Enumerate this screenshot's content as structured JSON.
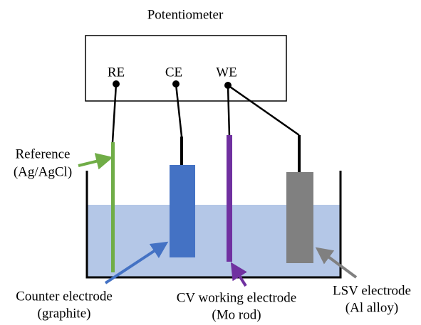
{
  "title": "Potentiometer",
  "terminals": [
    "RE",
    "CE",
    "WE"
  ],
  "labels": {
    "reference": [
      "Reference",
      "(Ag/AgCl)"
    ],
    "counter": [
      "Counter electrode",
      "(graphite)"
    ],
    "working": [
      "CV working electrode",
      "(Mo rod)"
    ],
    "lsv": [
      "LSV electrode",
      "(Al alloy)"
    ]
  }
}
